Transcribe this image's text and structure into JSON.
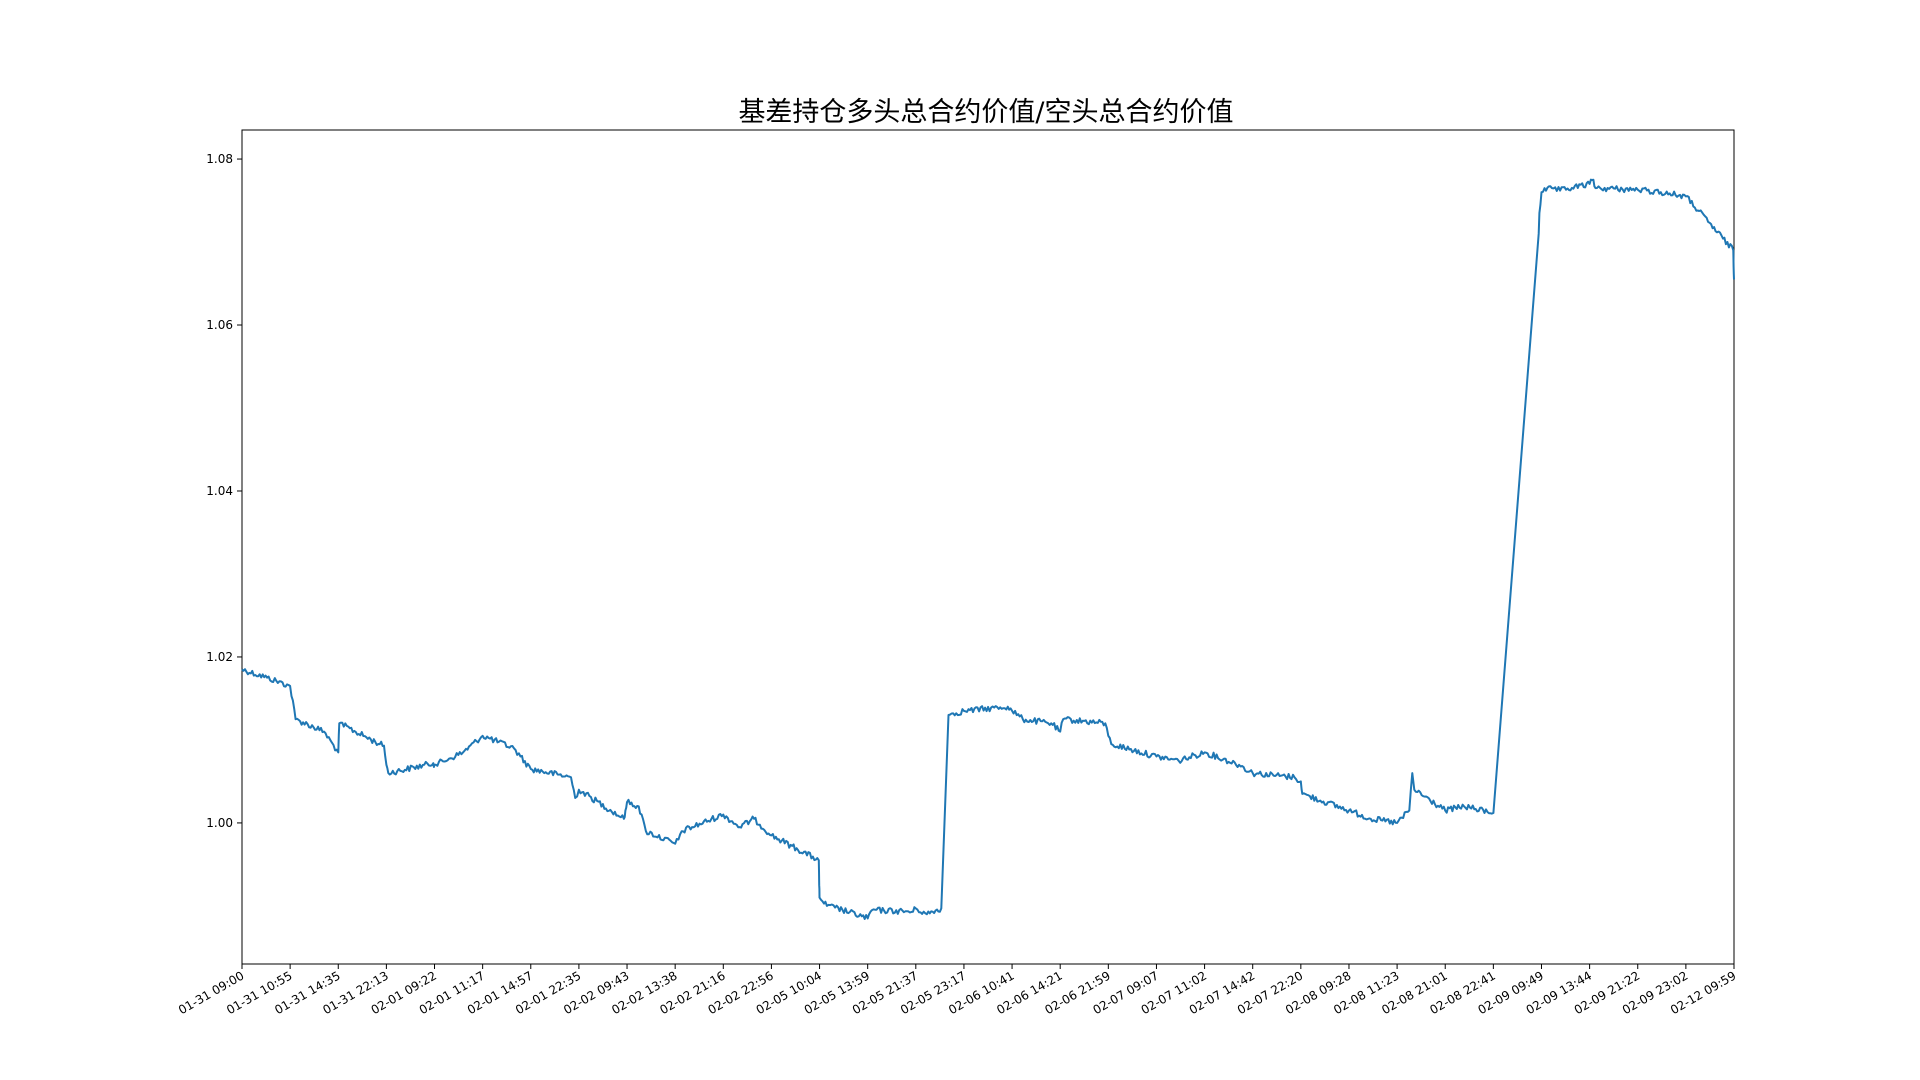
{
  "chart_data": {
    "type": "line",
    "title": "基差持仓多头总合约价值/空头总合约价值",
    "xlabel": "",
    "ylabel": "",
    "ylim": [
      0.983,
      1.0835
    ],
    "y_ticks": [
      1.0,
      1.02,
      1.04,
      1.06,
      1.08
    ],
    "y_tick_labels": [
      "1.00",
      "1.02",
      "1.04",
      "1.06",
      "1.08"
    ],
    "x_tick_labels": [
      "01-31 09:00",
      "01-31 10:55",
      "01-31 14:35",
      "01-31 22:13",
      "02-01 09:22",
      "02-01 11:17",
      "02-01 14:57",
      "02-01 22:35",
      "02-02 09:43",
      "02-02 13:38",
      "02-02 21:16",
      "02-02 22:56",
      "02-05 10:04",
      "02-05 13:59",
      "02-05 21:37",
      "02-05 23:17",
      "02-06 10:41",
      "02-06 14:21",
      "02-06 21:59",
      "02-07 09:07",
      "02-07 11:02",
      "02-07 14:42",
      "02-07 22:20",
      "02-08 09:28",
      "02-08 11:23",
      "02-08 21:01",
      "02-08 22:41",
      "02-09 09:49",
      "02-09 13:44",
      "02-09 21:22",
      "02-09 23:02",
      "02-12 09:59"
    ],
    "grid": false,
    "legend": "none",
    "series": [
      {
        "color": "#1f77b4",
        "x": [
          "01-31 09:00",
          "01-31 10:00",
          "01-31 10:55",
          "01-31 11:20",
          "01-31 13:30",
          "01-31 14:35",
          "01-31 14:45",
          "01-31 21:10",
          "01-31 21:50",
          "01-31 22:13",
          "01-31 22:40",
          "02-01 09:05",
          "02-01 09:22",
          "02-01 10:00",
          "02-01 10:30",
          "02-01 11:17",
          "02-01 13:40",
          "02-01 14:10",
          "02-01 14:57",
          "02-01 21:20",
          "02-01 22:00",
          "02-01 22:35",
          "02-02 09:00",
          "02-02 09:20",
          "02-02 09:43",
          "02-02 10:40",
          "02-02 11:15",
          "02-02 13:38",
          "02-02 14:10",
          "02-02 14:40",
          "02-02 21:16",
          "02-02 21:50",
          "02-02 22:20",
          "02-02 22:56",
          "02-05 09:10",
          "02-05 09:40",
          "02-05 10:04",
          "02-05 10:40",
          "02-05 11:20",
          "02-05 13:59",
          "02-05 14:40",
          "02-05 21:10",
          "02-05 21:37",
          "02-05 22:00",
          "02-05 22:30",
          "02-05 22:45",
          "02-05 23:17",
          "02-06 09:40",
          "02-06 10:41",
          "02-06 11:30",
          "02-06 13:40",
          "02-06 14:21",
          "02-06 14:50",
          "02-06 21:30",
          "02-06 21:59",
          "02-06 22:40",
          "02-07 09:07",
          "02-07 10:00",
          "02-07 11:02",
          "02-07 13:40",
          "02-07 14:42",
          "02-07 21:20",
          "02-07 22:20",
          "02-07 22:40",
          "02-08 09:28",
          "02-08 10:20",
          "02-08 11:23",
          "02-08 13:50",
          "02-08 14:25",
          "02-08 14:50",
          "02-08 21:01",
          "02-08 21:40",
          "02-08 22:41",
          "02-09 09:10",
          "02-09 09:20",
          "02-09 09:49",
          "02-09 10:40",
          "02-09 11:20",
          "02-09 13:44",
          "02-09 14:20",
          "02-09 14:40",
          "02-09 21:22",
          "02-09 22:10",
          "02-09 23:02",
          "02-12 09:10",
          "02-12 09:30",
          "02-12 09:59"
        ],
        "values": [
          1.0185,
          1.0175,
          1.0165,
          1.0125,
          1.011,
          1.0085,
          1.012,
          1.0095,
          1.0093,
          1.007,
          1.006,
          1.0072,
          1.007,
          1.0078,
          1.0085,
          1.0105,
          1.009,
          1.008,
          1.0065,
          1.0055,
          1.003,
          1.004,
          1.0005,
          1.0015,
          1.0025,
          1.002,
          0.999,
          0.9975,
          0.998,
          0.999,
          1.001,
          0.9995,
          1.0005,
          0.9985,
          0.9955,
          0.9925,
          0.991,
          0.99,
          0.9898,
          0.9885,
          0.9895,
          0.9893,
          0.9897,
          0.989,
          0.9897,
          1.013,
          1.0135,
          1.014,
          1.0135,
          1.0125,
          1.012,
          1.011,
          1.0125,
          1.012,
          1.0105,
          1.0095,
          1.008,
          1.0075,
          1.0085,
          1.007,
          1.006,
          1.0055,
          1.005,
          1.0035,
          1.0015,
          1.0005,
          1.0,
          1.0015,
          1.006,
          1.004,
          1.0015,
          1.002,
          1.0012,
          1.071,
          1.0735,
          1.076,
          1.0765,
          1.0762,
          1.077,
          1.0775,
          1.0765,
          1.0763,
          1.076,
          1.0755,
          1.069,
          1.067,
          1.0655
        ]
      }
    ]
  }
}
